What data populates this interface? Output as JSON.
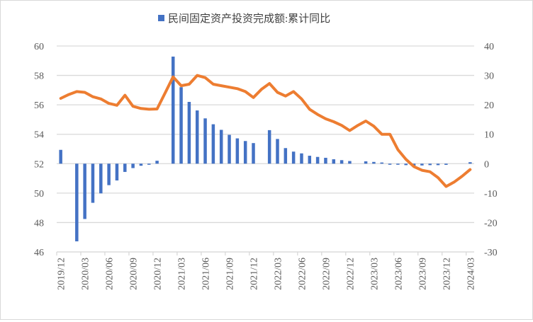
{
  "chart_data": {
    "type": "bar+line",
    "title": "",
    "legend": {
      "placement": "top",
      "entries": [
        "民间固定资产投资完成额:累计同比"
      ]
    },
    "grid": true,
    "colors": {
      "bars": "#4472C4",
      "line": "#ED7D31",
      "grid": "#D9D9D9",
      "tick_text": "#595959"
    },
    "left_axis": {
      "min": 46,
      "max": 60,
      "ticks": [
        "46",
        "48",
        "50",
        "52",
        "54",
        "56",
        "58",
        "60"
      ]
    },
    "right_axis": {
      "min": -30,
      "max": 40,
      "ticks": [
        "-30",
        "-20",
        "-10",
        "0",
        "10",
        "20",
        "30",
        "40"
      ]
    },
    "x_tick_labels": [
      "2019/12",
      "2020/03",
      "2020/06",
      "2020/09",
      "2020/12",
      "2021/03",
      "2021/06",
      "2021/09",
      "2021/12",
      "2022/03",
      "2022/06",
      "2022/09",
      "2022/12",
      "2023/03",
      "2023/06",
      "2023/09",
      "2023/12",
      "2024/03"
    ],
    "x": [
      "2019/12",
      "2020/01",
      "2020/02",
      "2020/03",
      "2020/04",
      "2020/05",
      "2020/06",
      "2020/07",
      "2020/08",
      "2020/09",
      "2020/10",
      "2020/11",
      "2020/12",
      "2021/01",
      "2021/02",
      "2021/03",
      "2021/04",
      "2021/05",
      "2021/06",
      "2021/07",
      "2021/08",
      "2021/09",
      "2021/10",
      "2021/11",
      "2021/12",
      "2022/01",
      "2022/02",
      "2022/03",
      "2022/04",
      "2022/05",
      "2022/06",
      "2022/07",
      "2022/08",
      "2022/09",
      "2022/10",
      "2022/11",
      "2022/12",
      "2023/01",
      "2023/02",
      "2023/03",
      "2023/04",
      "2023/05",
      "2023/06",
      "2023/07",
      "2023/08",
      "2023/09",
      "2023/10",
      "2023/11",
      "2023/12",
      "2024/01",
      "2024/02",
      "2024/03"
    ],
    "series": [
      {
        "name": "民间固定资产投资完成额:累计同比",
        "type": "bar",
        "axis": "right",
        "values": [
          4.7,
          null,
          -26.4,
          -18.8,
          -13.3,
          -10.1,
          -7.3,
          -5.7,
          -2.8,
          -1.5,
          -0.7,
          -0.1,
          1.0,
          null,
          36.4,
          26.0,
          21.0,
          18.1,
          15.4,
          13.4,
          11.5,
          9.8,
          8.6,
          7.7,
          7.0,
          null,
          11.4,
          8.4,
          5.3,
          4.1,
          3.5,
          2.7,
          2.3,
          2.0,
          1.5,
          1.2,
          0.9,
          null,
          0.8,
          0.6,
          0.4,
          -0.1,
          -0.2,
          -0.5,
          -0.7,
          -0.6,
          -0.5,
          -0.5,
          -0.4,
          null,
          null,
          0.5
        ]
      },
      {
        "type": "line",
        "axis": "left",
        "values": [
          56.44,
          56.7,
          56.9,
          56.85,
          56.55,
          56.4,
          56.1,
          55.97,
          56.65,
          55.9,
          55.75,
          55.7,
          55.72,
          56.8,
          57.9,
          57.3,
          57.4,
          58.0,
          57.85,
          57.4,
          57.3,
          57.2,
          57.1,
          56.9,
          56.5,
          57.05,
          57.45,
          56.85,
          56.6,
          56.9,
          56.4,
          55.7,
          55.35,
          55.05,
          54.85,
          54.6,
          54.25,
          54.6,
          54.9,
          54.55,
          54.0,
          54.0,
          52.95,
          52.3,
          51.8,
          51.55,
          51.45,
          51.05,
          50.45,
          50.75,
          51.15,
          51.6
        ]
      }
    ]
  }
}
